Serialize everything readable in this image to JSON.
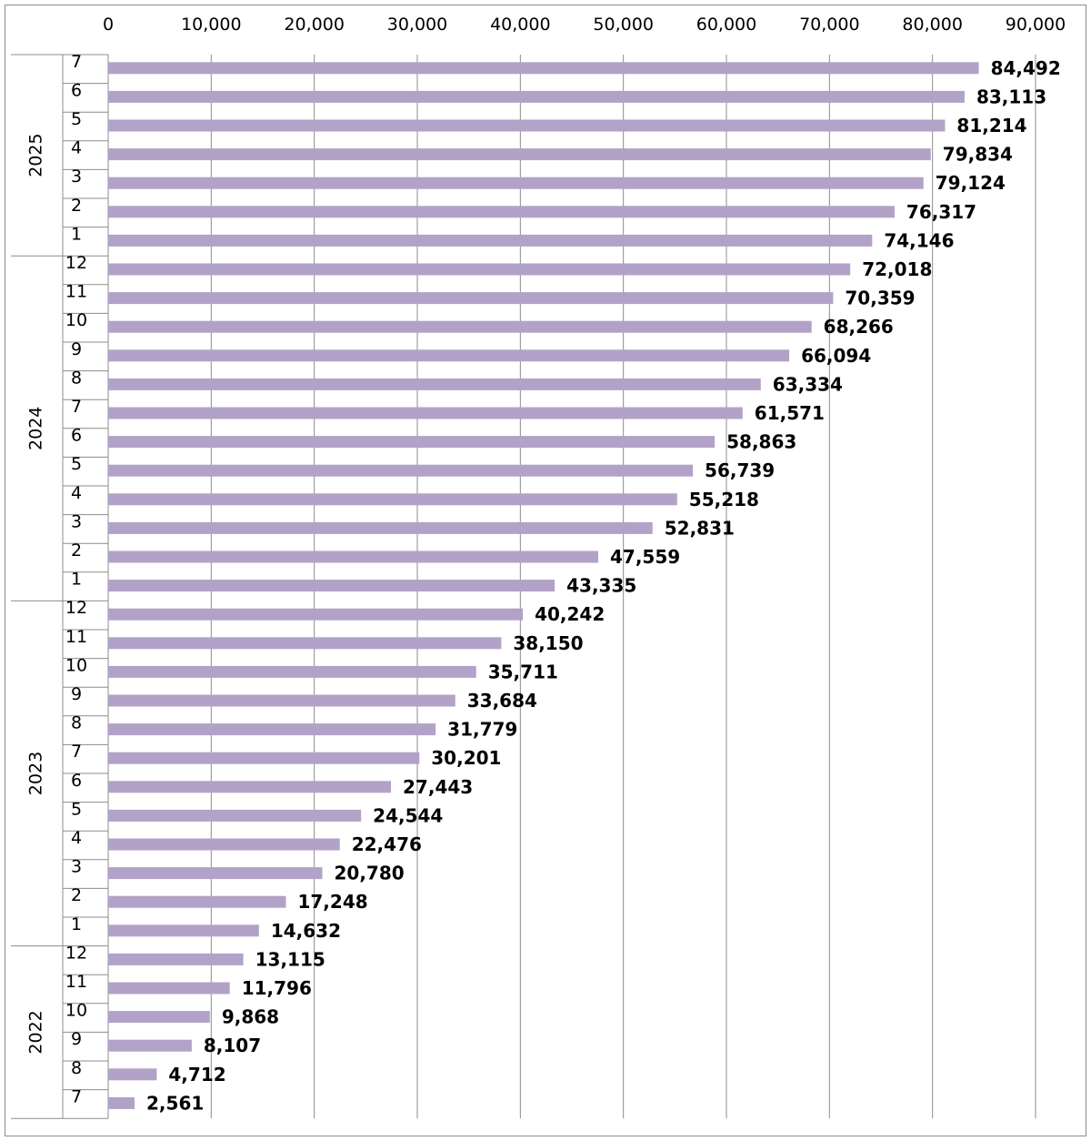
{
  "chart_data": {
    "type": "bar",
    "orientation": "horizontal",
    "title": "",
    "xlabel": "",
    "ylabel": "",
    "xlim": [
      0,
      90000
    ],
    "x_ticks": [
      "0",
      "10,000",
      "20,000",
      "30,000",
      "40,000",
      "50,000",
      "60,000",
      "70,000",
      "80,000",
      "90,000"
    ],
    "x_axis_position": "top",
    "grid": true,
    "bar_color": "#b3a2c7",
    "groups": [
      {
        "year": "2025",
        "months": [
          "7",
          "6",
          "5",
          "4",
          "3",
          "2",
          "1"
        ],
        "values": [
          84492,
          83113,
          81214,
          79834,
          79124,
          76317,
          74146
        ],
        "labels": [
          "84,492",
          "83,113",
          "81,214",
          "79,834",
          "79,124",
          "76,317",
          "74,146"
        ]
      },
      {
        "year": "2024",
        "months": [
          "12",
          "11",
          "10",
          "9",
          "8",
          "7",
          "6",
          "5",
          "4",
          "3",
          "2",
          "1"
        ],
        "values": [
          72018,
          70359,
          68266,
          66094,
          63334,
          61571,
          58863,
          56739,
          55218,
          52831,
          47559,
          43335
        ],
        "labels": [
          "72,018",
          "70,359",
          "68,266",
          "66,094",
          "63,334",
          "61,571",
          "58,863",
          "56,739",
          "55,218",
          "52,831",
          "47,559",
          "43,335"
        ]
      },
      {
        "year": "2023",
        "months": [
          "12",
          "11",
          "10",
          "9",
          "8",
          "7",
          "6",
          "5",
          "4",
          "3",
          "2",
          "1"
        ],
        "values": [
          40242,
          38150,
          35711,
          33684,
          31779,
          30201,
          27443,
          24544,
          22476,
          20780,
          17248,
          14632
        ],
        "labels": [
          "40,242",
          "38,150",
          "35,711",
          "33,684",
          "31,779",
          "30,201",
          "27,443",
          "24,544",
          "22,476",
          "20,780",
          "17,248",
          "14,632"
        ]
      },
      {
        "year": "2022",
        "months": [
          "12",
          "11",
          "10",
          "9",
          "8",
          "7"
        ],
        "values": [
          13115,
          11796,
          9868,
          8107,
          4712,
          2561
        ],
        "labels": [
          "13,115",
          "11,796",
          "9,868",
          "8,107",
          "4,712",
          "2,561"
        ]
      }
    ]
  }
}
